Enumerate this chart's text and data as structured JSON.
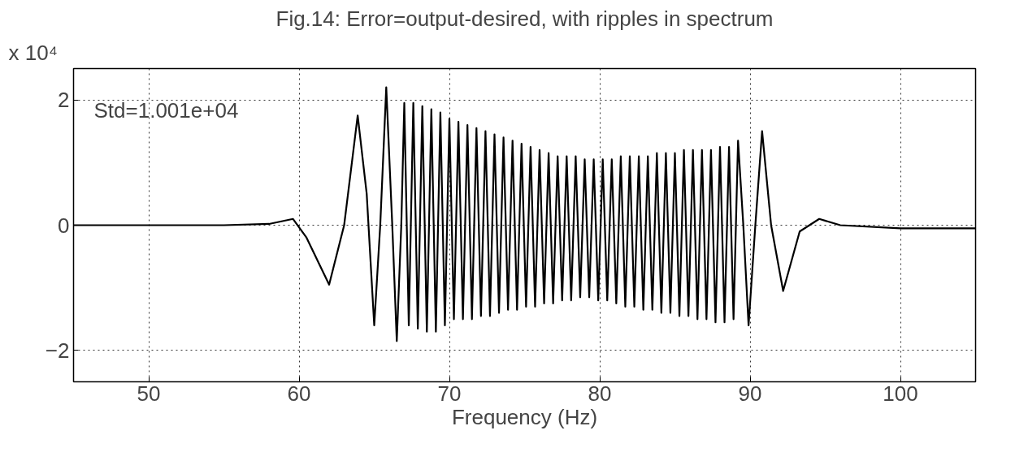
{
  "chart_data": {
    "type": "line",
    "title": "Fig.14: Error=output-desired, with ripples in spectrum",
    "xlabel": "Frequency (Hz)",
    "annotations": [
      "x 10⁴",
      "Std=1.001e+04"
    ],
    "xlim": [
      45,
      105
    ],
    "ylim": [
      -2.5,
      2.5
    ],
    "xticks": [
      50,
      60,
      70,
      80,
      90,
      100
    ],
    "yticks": [
      -2,
      0,
      2
    ],
    "grid": true,
    "marker": "none",
    "line_style": "solid",
    "series": [
      {
        "color": "#000000",
        "x": [
          45,
          55,
          58,
          59.6,
          60.5,
          62,
          63,
          63.9,
          64.5,
          65,
          65.4,
          65.8,
          66.2,
          66.5,
          66.8,
          67.0,
          67.3,
          67.6,
          67.9,
          68.2,
          68.5,
          68.8,
          69.1,
          69.4,
          69.7,
          70.0,
          70.3,
          70.6,
          70.9,
          71.2,
          71.5,
          71.8,
          72.1,
          72.4,
          72.7,
          73.0,
          73.3,
          73.6,
          73.9,
          74.2,
          74.5,
          74.8,
          75.1,
          75.4,
          75.7,
          76.0,
          76.3,
          76.6,
          76.9,
          77.2,
          77.5,
          77.8,
          78.1,
          78.4,
          78.7,
          79.0,
          79.3,
          79.6,
          79.9,
          80.2,
          80.5,
          80.8,
          81.1,
          81.4,
          81.7,
          82.0,
          82.3,
          82.6,
          82.9,
          83.2,
          83.5,
          83.8,
          84.1,
          84.4,
          84.7,
          85.0,
          85.3,
          85.6,
          85.9,
          86.2,
          86.5,
          86.8,
          87.1,
          87.4,
          87.7,
          88.0,
          88.3,
          88.6,
          88.9,
          89.2,
          89.55,
          89.9,
          90.35,
          90.8,
          91.4,
          92.2,
          93.3,
          94.6,
          96,
          100,
          105
        ],
        "values": [
          0,
          0,
          0.02,
          0.1,
          -0.2,
          -0.95,
          0,
          1.75,
          0.5,
          -1.6,
          0,
          2.2,
          0,
          -1.85,
          0,
          1.95,
          -1.6,
          1.95,
          -1.65,
          1.9,
          -1.7,
          1.85,
          -1.7,
          1.8,
          -1.6,
          1.7,
          -1.5,
          1.65,
          -1.5,
          1.6,
          -1.5,
          1.55,
          -1.45,
          1.5,
          -1.45,
          1.45,
          -1.4,
          1.4,
          -1.35,
          1.35,
          -1.35,
          1.3,
          -1.3,
          1.25,
          -1.3,
          1.2,
          -1.25,
          1.15,
          -1.25,
          1.1,
          -1.2,
          1.1,
          -1.2,
          1.1,
          -1.15,
          1.05,
          -1.15,
          1.05,
          -1.2,
          1.05,
          -1.2,
          1.05,
          -1.25,
          1.1,
          -1.3,
          1.1,
          -1.3,
          1.1,
          -1.35,
          1.1,
          -1.35,
          1.15,
          -1.4,
          1.15,
          -1.4,
          1.15,
          -1.45,
          1.2,
          -1.45,
          1.2,
          -1.5,
          1.2,
          -1.5,
          1.2,
          -1.55,
          1.25,
          -1.55,
          1.25,
          -1.5,
          1.35,
          0,
          -1.6,
          0,
          1.5,
          0,
          -1.05,
          -0.1,
          0.1,
          0,
          -0.05,
          -0.05
        ]
      }
    ]
  }
}
